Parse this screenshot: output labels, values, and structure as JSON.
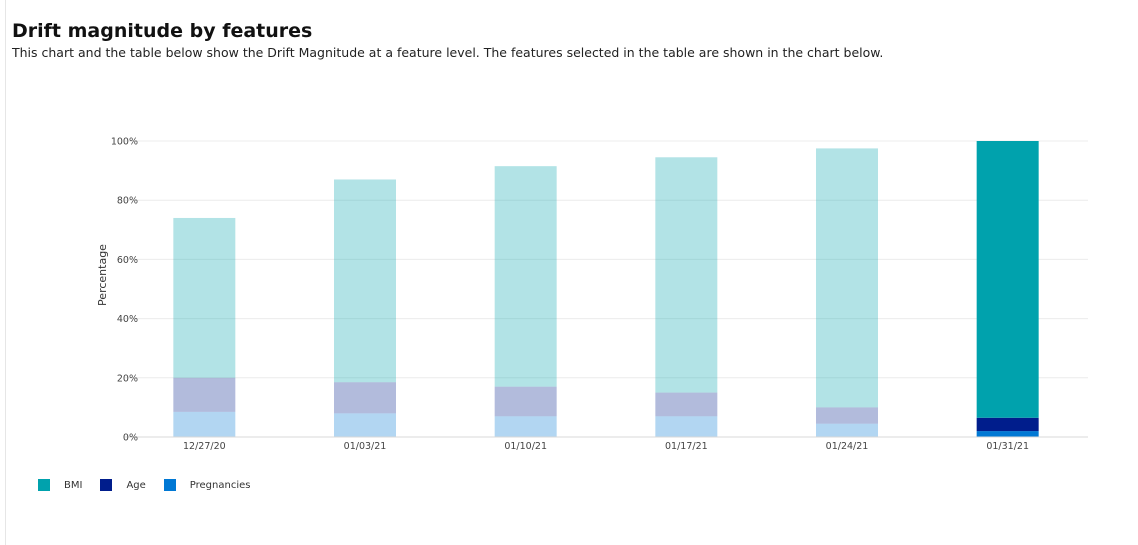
{
  "header": {
    "title": "Drift magnitude by features",
    "subtitle": "This chart and the table below show the Drift Magnitude at a feature level. The features selected in the table are shown in the chart below."
  },
  "colors": {
    "BMI": "#00a2ad",
    "Age": "#001d8c",
    "Pregnancies": "#0078d4",
    "gridline": "#ececec"
  },
  "chart_data": {
    "type": "bar",
    "stacked": true,
    "categories": [
      "12/27/20",
      "01/03/21",
      "01/10/21",
      "01/17/21",
      "01/24/21",
      "01/31/21"
    ],
    "series": [
      {
        "name": "Pregnancies",
        "values": [
          8.5,
          8.0,
          7.0,
          7.0,
          4.5,
          2.0
        ],
        "faded": [
          true,
          true,
          true,
          true,
          true,
          false
        ]
      },
      {
        "name": "Age",
        "values": [
          11.5,
          10.5,
          10.0,
          8.0,
          5.5,
          4.5
        ],
        "faded": [
          true,
          true,
          true,
          true,
          true,
          false
        ]
      },
      {
        "name": "BMI",
        "values": [
          54.0,
          68.5,
          74.5,
          79.5,
          87.5,
          93.5
        ],
        "faded": [
          true,
          true,
          true,
          true,
          true,
          false
        ]
      }
    ],
    "yticks": [
      "0%",
      "20%",
      "40%",
      "60%",
      "80%",
      "100%"
    ],
    "ylim": [
      0,
      100
    ],
    "ylabel": "Percentage",
    "xlabel": "",
    "grid": true,
    "legend_position": "bottom-left"
  }
}
